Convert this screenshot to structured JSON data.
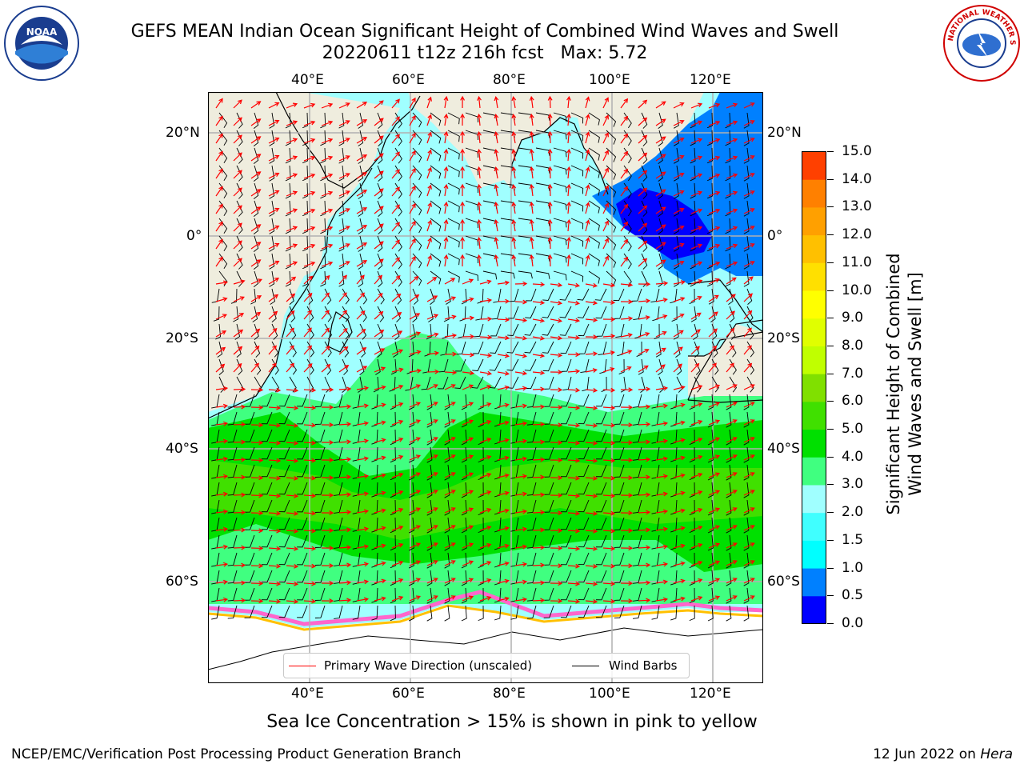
{
  "header": {
    "title": "GEFS MEAN Indian Ocean Significant Height of Combined Wind Waves and Swell",
    "subtitle": "20220611 t12z 216h fcst   Max: 5.72"
  },
  "logos": {
    "left": "NOAA",
    "right": "NATIONAL WEATHER SERVICE"
  },
  "map": {
    "lon_ticks": [
      "40°E",
      "60°E",
      "80°E",
      "100°E",
      "120°E"
    ],
    "lat_ticks": [
      "20°N",
      "0°",
      "20°S",
      "40°S",
      "60°S"
    ],
    "legend": {
      "wave": "Primary Wave Direction (unscaled)",
      "wind": "Wind Barbs"
    },
    "colors": {
      "land": "#efedde",
      "wave_arrow": "#ff0000",
      "wind_barb": "#000000",
      "ice": "#ff66cc"
    }
  },
  "colorbar": {
    "label_line1": "Significant Height of Combined",
    "label_line2": "Wind Waves and Swell [m]",
    "ticks": [
      "15.0",
      "14.0",
      "13.0",
      "12.0",
      "11.0",
      "10.0",
      "9.0",
      "8.0",
      "7.0",
      "6.0",
      "5.0",
      "4.0",
      "3.0",
      "2.0",
      "1.5",
      "1.0",
      "0.5",
      "0.0"
    ],
    "colors": [
      "#0000ff",
      "#0080ff",
      "#00ffff",
      "#40ffff",
      "#a0ffff",
      "#40ff80",
      "#00e000",
      "#40e000",
      "#80e000",
      "#c0ff00",
      "#e0ff00",
      "#ffff00",
      "#ffe000",
      "#ffc000",
      "#ffa000",
      "#ff8000",
      "#ff4000",
      "#ff0000"
    ]
  },
  "footer": {
    "ice_note": "Sea Ice Concentration > 15% is shown in pink to yellow",
    "credit": "NCEP/EMC/Verification Post Processing Product Generation Branch",
    "date": "12 Jun 2022 on",
    "host": "Hera"
  }
}
